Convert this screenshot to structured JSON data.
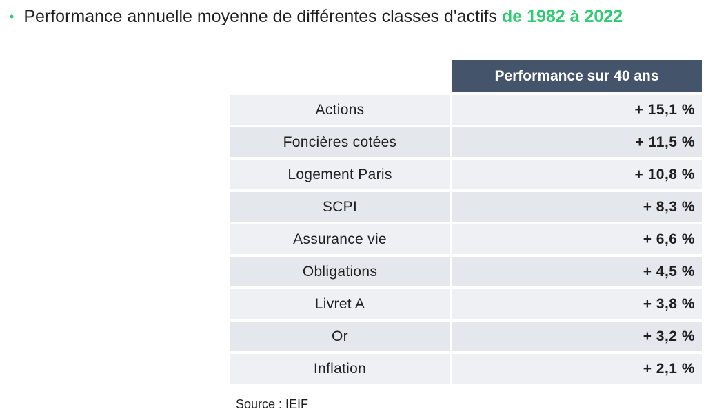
{
  "title": {
    "bullet": "•",
    "main": "Performance annuelle moyenne de différentes classes d'actifs",
    "accent": "de 1982 à 2022"
  },
  "table": {
    "header": "Performance sur 40 ans",
    "rows": [
      {
        "name": "Actions",
        "value": "+ 15,1 %"
      },
      {
        "name": "Foncières cotées",
        "value": "+ 11,5 %"
      },
      {
        "name": "Logement Paris",
        "value": "+ 10,8 %"
      },
      {
        "name": "SCPI",
        "value": "+ 8,3 %"
      },
      {
        "name": "Assurance vie",
        "value": "+ 6,6 %"
      },
      {
        "name": "Obligations",
        "value": "+ 4,5 %"
      },
      {
        "name": "Livret A",
        "value": "+ 3,8 %"
      },
      {
        "name": "Or",
        "value": "+ 3,2 %"
      },
      {
        "name": "Inflation",
        "value": "+ 2,1 %"
      }
    ]
  },
  "source": "Source : IEIF",
  "colors": {
    "accent": "#2ecc71",
    "header_bg": "#44546a",
    "row_bg": "#e4e7ec"
  }
}
